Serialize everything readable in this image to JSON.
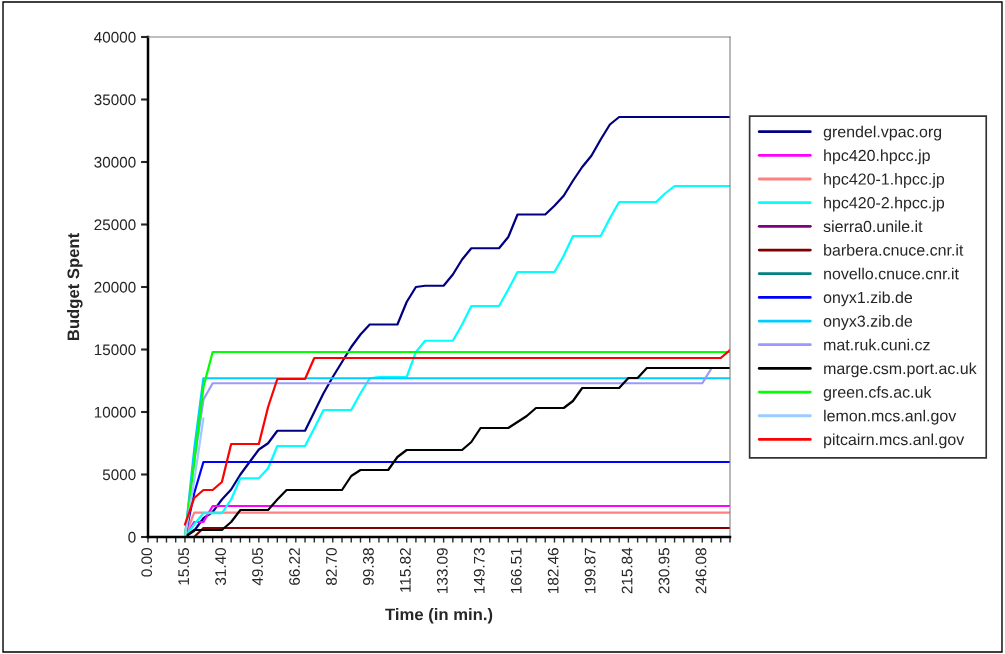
{
  "chart_data": {
    "type": "line",
    "xlabel": "Time (in min.)",
    "ylabel": "Budget Spent",
    "categories": [
      "0.00",
      null,
      null,
      null,
      "15.05",
      null,
      null,
      null,
      "31.40",
      null,
      null,
      null,
      "49.05",
      null,
      null,
      null,
      "66.22",
      null,
      null,
      null,
      "82.70",
      null,
      null,
      null,
      "99.38",
      null,
      null,
      null,
      "115.82",
      null,
      null,
      null,
      "133.09",
      null,
      null,
      null,
      "149.73",
      null,
      null,
      null,
      "166.51",
      null,
      null,
      null,
      "182.46",
      null,
      null,
      null,
      "199.87",
      null,
      null,
      null,
      "215.84",
      null,
      null,
      null,
      "230.95",
      null,
      null,
      null,
      "246.08",
      null,
      null,
      null
    ],
    "ylim": [
      0,
      40000
    ],
    "yticks": [
      0,
      5000,
      10000,
      15000,
      20000,
      25000,
      30000,
      35000,
      40000
    ],
    "grid": false,
    "legend": "right",
    "marker": "none",
    "line_style": "solid",
    "series": [
      {
        "name": "grendel.vpac.org",
        "color": "#000080",
        "values": [
          null,
          null,
          null,
          null,
          0,
          500,
          1500,
          2000,
          3000,
          3800,
          5000,
          6000,
          7000,
          7500,
          8500,
          8500,
          8500,
          8500,
          10000,
          11500,
          12800,
          14000,
          15200,
          16200,
          17000,
          17000,
          17000,
          17000,
          18800,
          20000,
          20100,
          20100,
          20100,
          21000,
          22200,
          23100,
          23100,
          23100,
          23100,
          24000,
          25800,
          25800,
          25800,
          25800,
          26500,
          27300,
          28500,
          29600,
          30500,
          31800,
          33000,
          33600,
          33600,
          33600,
          33600,
          33600,
          33600,
          33600,
          33600,
          33600,
          33600,
          33600,
          33600,
          33600
        ]
      },
      {
        "name": "hpc420.hpcc.jp",
        "color": "#ff00ff",
        "values": [
          null,
          null,
          null,
          null,
          0,
          1200,
          1200,
          2480,
          2480,
          2480,
          2480,
          2480,
          2480,
          2480,
          2480,
          2480,
          2480,
          2480,
          2480,
          2480,
          2480,
          2480,
          2480,
          2480,
          2480,
          2480,
          2480,
          2480,
          2480,
          2480,
          2480,
          2480,
          2480,
          2480,
          2480,
          2480,
          2480,
          2480,
          2480,
          2480,
          2480,
          2480,
          2480,
          2480,
          2480,
          2480,
          2480,
          2480,
          2480,
          2480,
          2480,
          2480,
          2480,
          2480,
          2480,
          2480,
          2480,
          2480,
          2480,
          2480,
          2480,
          2480,
          2480,
          2480
        ]
      },
      {
        "name": "hpc420-1.hpcc.jp",
        "color": "#ff8080",
        "values": [
          null,
          null,
          null,
          null,
          0,
          1950,
          1950,
          1950,
          1950,
          1950,
          1950,
          1950,
          1950,
          1950,
          1950,
          1950,
          1950,
          1950,
          1950,
          1950,
          1950,
          1950,
          1950,
          1950,
          1950,
          1950,
          1950,
          1950,
          1950,
          1950,
          1950,
          1950,
          1950,
          1950,
          1950,
          1950,
          1950,
          1950,
          1950,
          1950,
          1950,
          1950,
          1950,
          1950,
          1950,
          1950,
          1950,
          1950,
          1950,
          1950,
          1950,
          1950,
          1950,
          1950,
          1950,
          1950,
          1950,
          1950,
          1950,
          1950,
          1950,
          1950,
          1950,
          1950
        ]
      },
      {
        "name": "hpc420-2.hpcc.jp",
        "color": "#00ffff",
        "values": [
          null,
          null,
          null,
          null,
          0,
          1000,
          1900,
          1900,
          1900,
          3000,
          4700,
          4700,
          4700,
          5500,
          7280,
          7280,
          7280,
          7280,
          8700,
          10160,
          10160,
          10160,
          10160,
          11500,
          12700,
          12800,
          12800,
          12800,
          12800,
          14800,
          15700,
          15700,
          15700,
          15700,
          17000,
          18480,
          18480,
          18480,
          18480,
          19800,
          21200,
          21200,
          21200,
          21200,
          21200,
          22500,
          24080,
          24080,
          24080,
          24080,
          25500,
          26800,
          26800,
          26800,
          26800,
          26800,
          27500,
          28080,
          28080,
          28080,
          28080,
          28080,
          28080,
          28080
        ]
      },
      {
        "name": "sierra0.unile.it",
        "color": "#800080",
        "values": [
          null,
          null,
          null,
          null,
          null,
          null,
          null,
          null,
          null,
          null,
          null,
          null,
          null,
          null,
          null,
          null,
          null,
          null,
          null,
          null,
          null,
          null,
          null,
          null,
          null,
          null,
          null,
          null,
          null,
          null,
          null,
          null,
          null,
          null,
          null,
          null,
          null,
          null,
          null,
          null,
          null,
          null,
          null,
          null,
          null,
          null,
          null,
          null,
          null,
          null,
          null,
          null,
          null,
          null,
          null,
          null,
          null,
          null,
          null,
          null,
          null,
          null,
          null,
          null
        ]
      },
      {
        "name": "barbera.cnuce.cnr.it",
        "color": "#800000",
        "values": [
          null,
          null,
          null,
          null,
          null,
          0,
          720,
          720,
          720,
          720,
          720,
          720,
          720,
          720,
          720,
          720,
          720,
          720,
          720,
          720,
          720,
          720,
          720,
          720,
          720,
          720,
          720,
          720,
          720,
          720,
          720,
          720,
          720,
          720,
          720,
          720,
          720,
          720,
          720,
          720,
          720,
          720,
          720,
          720,
          720,
          720,
          720,
          720,
          720,
          720,
          720,
          720,
          720,
          720,
          720,
          720,
          720,
          720,
          720,
          720,
          720,
          720,
          720,
          720
        ]
      },
      {
        "name": "novello.cnuce.cnr.it",
        "color": "#008080",
        "values": [
          null,
          null,
          null,
          null,
          null,
          null,
          null,
          null,
          null,
          null,
          null,
          null,
          null,
          null,
          null,
          null,
          null,
          null,
          null,
          null,
          null,
          null,
          null,
          null,
          null,
          null,
          null,
          null,
          null,
          null,
          null,
          null,
          null,
          null,
          null,
          null,
          null,
          null,
          null,
          null,
          null,
          null,
          null,
          null,
          null,
          null,
          null,
          null,
          null,
          null,
          null,
          null,
          null,
          null,
          null,
          null,
          null,
          null,
          null,
          null,
          null,
          null,
          null,
          null
        ]
      },
      {
        "name": "onyx1.zib.de",
        "color": "#0000ff",
        "values": [
          null,
          null,
          null,
          null,
          0,
          3500,
          6000,
          6000,
          6000,
          6000,
          6000,
          6000,
          6000,
          6000,
          6000,
          6000,
          6000,
          6000,
          6000,
          6000,
          6000,
          6000,
          6000,
          6000,
          6000,
          6000,
          6000,
          6000,
          6000,
          6000,
          6000,
          6000,
          6000,
          6000,
          6000,
          6000,
          6000,
          6000,
          6000,
          6000,
          6000,
          6000,
          6000,
          6000,
          6000,
          6000,
          6000,
          6000,
          6000,
          6000,
          6000,
          6000,
          6000,
          6000,
          6000,
          6000,
          6000,
          6000,
          6000,
          6000,
          6000,
          6000,
          6000,
          6000
        ]
      },
      {
        "name": "onyx3.zib.de",
        "color": "#00ccff",
        "values": [
          null,
          null,
          null,
          null,
          0,
          7000,
          12700,
          12700,
          12700,
          12700,
          12700,
          12700,
          12700,
          12700,
          12700,
          12700,
          12700,
          12700,
          12700,
          12700,
          12700,
          12700,
          12700,
          12700,
          12700,
          12700,
          12700,
          12700,
          12700,
          12700,
          12700,
          12700,
          12700,
          12700,
          12700,
          12700,
          12700,
          12700,
          12700,
          12700,
          12700,
          12700,
          12700,
          12700,
          12700,
          12700,
          12700,
          12700,
          12700,
          12700,
          12700,
          12700,
          12700,
          12700,
          12700,
          12700,
          12700,
          12700,
          12700,
          12700,
          12700,
          12700,
          12700,
          12700
        ]
      },
      {
        "name": "mat.ruk.cuni.cz",
        "color": "#9999ff",
        "values": [
          null,
          null,
          null,
          null,
          0,
          6000,
          11000,
          12300,
          12300,
          12300,
          12300,
          12300,
          12300,
          12300,
          12300,
          12300,
          12300,
          12300,
          12300,
          12300,
          12300,
          12300,
          12300,
          12300,
          12300,
          12300,
          12300,
          12300,
          12300,
          12300,
          12300,
          12300,
          12300,
          12300,
          12300,
          12300,
          12300,
          12300,
          12300,
          12300,
          12300,
          12300,
          12300,
          12300,
          12300,
          12300,
          12300,
          12300,
          12300,
          12300,
          12300,
          12300,
          12300,
          12300,
          12300,
          12300,
          12300,
          12300,
          12300,
          12300,
          12300,
          13500,
          null,
          null
        ]
      },
      {
        "name": "marge.csm.port.ac.uk",
        "color": "#000000",
        "values": [
          null,
          null,
          null,
          null,
          0,
          560,
          560,
          560,
          560,
          1200,
          2160,
          2160,
          2160,
          2160,
          3000,
          3760,
          3760,
          3760,
          3760,
          3760,
          3760,
          3760,
          4880,
          5360,
          5360,
          5360,
          5360,
          6400,
          6960,
          6960,
          6960,
          6960,
          6960,
          6960,
          6960,
          7600,
          8720,
          8720,
          8720,
          8720,
          9200,
          9680,
          10320,
          10320,
          10320,
          10320,
          10880,
          11920,
          11920,
          11920,
          11920,
          11920,
          12720,
          12720,
          13520,
          13520,
          13520,
          13520,
          13520,
          13520,
          13520,
          13520,
          13520,
          13520
        ]
      },
      {
        "name": "green.cfs.ac.uk",
        "color": "#00ff00",
        "values": [
          null,
          null,
          null,
          null,
          0,
          6000,
          12000,
          14800,
          14800,
          14800,
          14800,
          14800,
          14800,
          14800,
          14800,
          14800,
          14800,
          14800,
          14800,
          14800,
          14800,
          14800,
          14800,
          14800,
          14800,
          14800,
          14800,
          14800,
          14800,
          14800,
          14800,
          14800,
          14800,
          14800,
          14800,
          14800,
          14800,
          14800,
          14800,
          14800,
          14800,
          14800,
          14800,
          14800,
          14800,
          14800,
          14800,
          14800,
          14800,
          14800,
          14800,
          14800,
          14800,
          14800,
          14800,
          14800,
          14800,
          14800,
          14800,
          14800,
          14800,
          14800,
          14800,
          14800
        ]
      },
      {
        "name": "lemon.mcs.anl.gov",
        "color": "#99ccff",
        "values": [
          null,
          null,
          null,
          null,
          0,
          4500,
          9500,
          null,
          null,
          null,
          null,
          null,
          null,
          null,
          null,
          null,
          null,
          null,
          null,
          null,
          null,
          null,
          null,
          null,
          null,
          null,
          null,
          null,
          null,
          null,
          null,
          null,
          null,
          null,
          null,
          null,
          null,
          null,
          null,
          null,
          null,
          null,
          null,
          null,
          null,
          null,
          null,
          null,
          null,
          null,
          null,
          null,
          null,
          null,
          null,
          null,
          null,
          null,
          null,
          null,
          null,
          null,
          null,
          null
        ]
      },
      {
        "name": "pitcairn.mcs.anl.gov",
        "color": "#ff0000",
        "values": [
          null,
          null,
          null,
          null,
          1000,
          3120,
          3760,
          3760,
          4400,
          7440,
          7440,
          7440,
          7440,
          10400,
          12640,
          12640,
          12640,
          12640,
          14320,
          14320,
          14320,
          14320,
          14320,
          14320,
          14320,
          14320,
          14320,
          14320,
          14320,
          14320,
          14320,
          14320,
          14320,
          14320,
          14320,
          14320,
          14320,
          14320,
          14320,
          14320,
          14320,
          14320,
          14320,
          14320,
          14320,
          14320,
          14320,
          14320,
          14320,
          14320,
          14320,
          14320,
          14320,
          14320,
          14320,
          14320,
          14320,
          14320,
          14320,
          14320,
          14320,
          14320,
          14320,
          14960
        ]
      }
    ]
  }
}
